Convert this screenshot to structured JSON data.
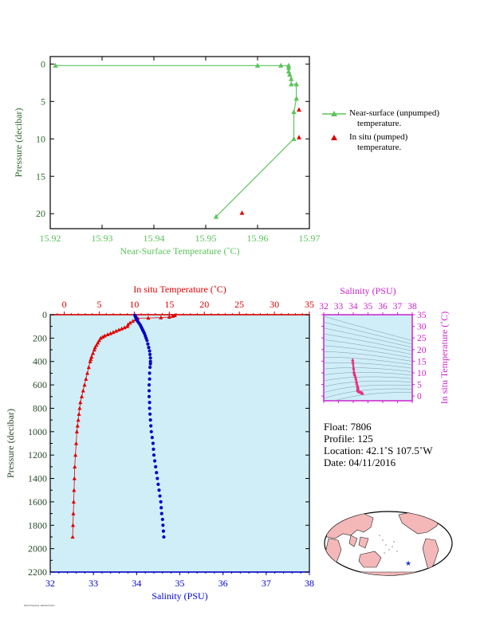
{
  "chart_data": [
    {
      "id": "near_surface",
      "type": "line",
      "xlabel": "Near-Surface Temperature (˚C)",
      "ylabel": "Pressure (decibar)",
      "xlim": [
        15.92,
        15.97
      ],
      "ylim": [
        22,
        -1
      ],
      "x_ticks": [
        "15.92",
        "15.93",
        "15.94",
        "15.95",
        "15.96",
        "15.97"
      ],
      "y_ticks": [
        "0",
        "5",
        "10",
        "15",
        "20"
      ],
      "colors": {
        "near_surface": "#5cc35c",
        "in_situ": "#e00000"
      },
      "series": [
        {
          "name": "Near-surface (unpumped) temperature.",
          "style": "line-triangle",
          "points": [
            [
              15.921,
              0.2
            ],
            [
              15.96,
              0.2
            ],
            [
              15.9645,
              0.2
            ],
            [
              15.966,
              0.2
            ],
            [
              15.966,
              0.5
            ],
            [
              15.966,
              1.0
            ],
            [
              15.9662,
              1.4
            ],
            [
              15.9665,
              2.0
            ],
            [
              15.9665,
              2.7
            ],
            [
              15.9675,
              2.7
            ],
            [
              15.9675,
              4.6
            ],
            [
              15.967,
              6.4
            ],
            [
              15.967,
              10.0
            ],
            [
              15.952,
              20.4
            ]
          ]
        },
        {
          "name": "In situ (pumped) temperature.",
          "style": "triangle",
          "points": [
            [
              15.968,
              6.1
            ],
            [
              15.968,
              9.8
            ],
            [
              15.957,
              19.9
            ]
          ]
        }
      ],
      "legend": [
        {
          "line1": "Near-surface (unpumped)",
          "line2": "temperature."
        },
        {
          "line1": "In situ (pumped)",
          "line2": "temperature."
        }
      ]
    },
    {
      "id": "profile",
      "type": "scatter",
      "ylabel": "Pressure (decibar)",
      "ylim": [
        2200,
        0
      ],
      "y_ticks": [
        "0",
        "200",
        "400",
        "600",
        "800",
        "1000",
        "1200",
        "1400",
        "1600",
        "1800",
        "2000",
        "2200"
      ],
      "top_axis": {
        "label": "In situ Temperature (˚C)",
        "xlim": [
          -2,
          35
        ],
        "ticks": [
          "0",
          "5",
          "10",
          "15",
          "20",
          "25",
          "30",
          "35"
        ]
      },
      "bottom_axis": {
        "label": "Salinity (PSU)",
        "xlim": [
          32,
          38
        ],
        "ticks": [
          "32",
          "33",
          "34",
          "35",
          "36",
          "37",
          "38"
        ]
      },
      "colors": {
        "temperature": "#e00000",
        "salinity": "#0000cc",
        "background": "#d0eef8"
      },
      "temperature_profile": [
        [
          15.8,
          5
        ],
        [
          15.5,
          12
        ],
        [
          15.0,
          20
        ],
        [
          13.8,
          25
        ],
        [
          12.0,
          28
        ],
        [
          10.5,
          30
        ],
        [
          10.2,
          40
        ],
        [
          9.8,
          55
        ],
        [
          9.4,
          70
        ],
        [
          9.1,
          85
        ],
        [
          9.0,
          100
        ],
        [
          8.6,
          110
        ],
        [
          8.2,
          120
        ],
        [
          7.8,
          130
        ],
        [
          7.4,
          140
        ],
        [
          7.0,
          150
        ],
        [
          6.6,
          160
        ],
        [
          6.2,
          170
        ],
        [
          5.8,
          180
        ],
        [
          5.5,
          190
        ],
        [
          5.2,
          200
        ],
        [
          5.0,
          220
        ],
        [
          4.8,
          240
        ],
        [
          4.6,
          260
        ],
        [
          4.4,
          280
        ],
        [
          4.3,
          300
        ],
        [
          4.1,
          330
        ],
        [
          3.9,
          360
        ],
        [
          3.8,
          380
        ],
        [
          3.7,
          400
        ],
        [
          3.5,
          450
        ],
        [
          3.3,
          500
        ],
        [
          3.1,
          550
        ],
        [
          2.9,
          600
        ],
        [
          2.7,
          650
        ],
        [
          2.5,
          700
        ],
        [
          2.3,
          750
        ],
        [
          2.2,
          800
        ],
        [
          2.1,
          850
        ],
        [
          2.0,
          900
        ],
        [
          1.9,
          950
        ],
        [
          1.8,
          1000
        ],
        [
          1.7,
          1100
        ],
        [
          1.6,
          1200
        ],
        [
          1.5,
          1300
        ],
        [
          1.45,
          1400
        ],
        [
          1.4,
          1500
        ],
        [
          1.35,
          1600
        ],
        [
          1.3,
          1700
        ],
        [
          1.25,
          1800
        ],
        [
          1.2,
          1900
        ]
      ],
      "salinity_profile": [
        [
          33.96,
          5
        ],
        [
          33.97,
          15
        ],
        [
          33.98,
          25
        ],
        [
          34.0,
          40
        ],
        [
          34.02,
          55
        ],
        [
          34.05,
          70
        ],
        [
          34.08,
          85
        ],
        [
          34.1,
          100
        ],
        [
          34.12,
          115
        ],
        [
          34.14,
          130
        ],
        [
          34.16,
          145
        ],
        [
          34.18,
          160
        ],
        [
          34.2,
          180
        ],
        [
          34.22,
          200
        ],
        [
          34.24,
          220
        ],
        [
          34.26,
          250
        ],
        [
          34.28,
          280
        ],
        [
          34.3,
          310
        ],
        [
          34.31,
          340
        ],
        [
          34.32,
          370
        ],
        [
          34.32,
          400
        ],
        [
          34.32,
          420
        ],
        [
          34.31,
          450
        ],
        [
          34.3,
          500
        ],
        [
          34.3,
          550
        ],
        [
          34.29,
          600
        ],
        [
          34.29,
          650
        ],
        [
          34.29,
          700
        ],
        [
          34.3,
          750
        ],
        [
          34.3,
          800
        ],
        [
          34.31,
          850
        ],
        [
          34.32,
          900
        ],
        [
          34.33,
          950
        ],
        [
          34.34,
          1000
        ],
        [
          34.36,
          1050
        ],
        [
          34.38,
          1100
        ],
        [
          34.39,
          1150
        ],
        [
          34.4,
          1200
        ],
        [
          34.42,
          1250
        ],
        [
          34.44,
          1300
        ],
        [
          34.46,
          1350
        ],
        [
          34.48,
          1400
        ],
        [
          34.5,
          1450
        ],
        [
          34.52,
          1500
        ],
        [
          34.54,
          1550
        ],
        [
          34.56,
          1600
        ],
        [
          34.57,
          1650
        ],
        [
          34.58,
          1700
        ],
        [
          34.6,
          1750
        ],
        [
          34.61,
          1800
        ],
        [
          34.62,
          1850
        ],
        [
          34.63,
          1900
        ]
      ]
    },
    {
      "id": "ts_diagram",
      "type": "scatter",
      "xlabel": "Salinity (PSU)",
      "ylabel": "In situ Temperature (˚C)",
      "xlim": [
        32,
        38
      ],
      "ylim": [
        -2,
        35
      ],
      "x_ticks": [
        "32",
        "33",
        "34",
        "35",
        "36",
        "37",
        "38"
      ],
      "y_ticks": [
        "0",
        "5",
        "10",
        "15",
        "20",
        "25",
        "30",
        "35"
      ],
      "colors": {
        "points": "#e8307a",
        "axis": "#cc22cc"
      },
      "points": [
        [
          33.96,
          15.6
        ],
        [
          33.98,
          14.5
        ],
        [
          34.02,
          12.0
        ],
        [
          34.05,
          10.4
        ],
        [
          34.08,
          9.8
        ],
        [
          34.1,
          9.2
        ],
        [
          34.14,
          8.4
        ],
        [
          34.18,
          7.4
        ],
        [
          34.22,
          6.2
        ],
        [
          34.24,
          5.4
        ],
        [
          34.28,
          4.5
        ],
        [
          34.31,
          4.0
        ],
        [
          34.32,
          3.6
        ],
        [
          34.3,
          3.2
        ],
        [
          34.3,
          2.8
        ],
        [
          34.32,
          2.4
        ],
        [
          34.36,
          2.1
        ],
        [
          34.42,
          1.8
        ],
        [
          34.5,
          1.6
        ],
        [
          34.58,
          1.4
        ],
        [
          34.63,
          1.2
        ]
      ]
    }
  ],
  "float_info": {
    "float": "Float:  7806",
    "profile": "Profile:  125",
    "location": "Location:  42.1˚S  107.5˚W",
    "date": "Date:  04/11/2016"
  },
  "map": {
    "marker": "★",
    "colors": {
      "ocean": "#ffffff",
      "land": "#f4b8b8",
      "outline": "#000000",
      "marker": "#1a3acc"
    }
  },
  "footnote": "PROVISIONAL MIDDLETON"
}
